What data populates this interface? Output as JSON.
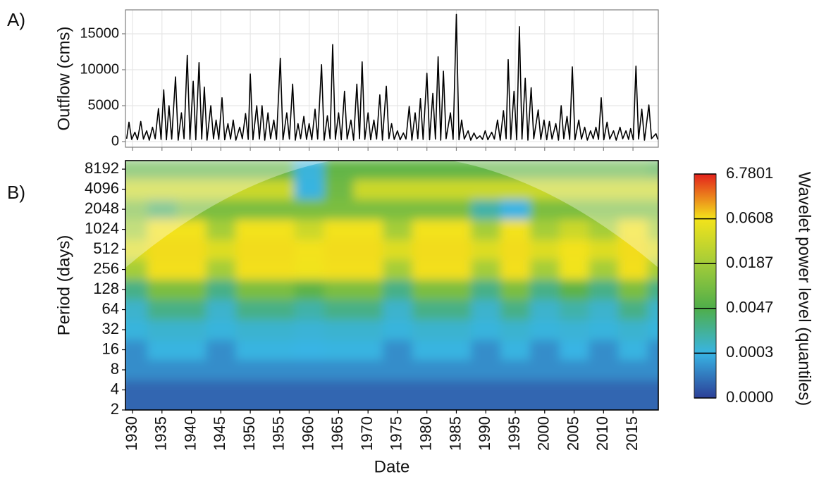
{
  "chart_data": [
    {
      "type": "line",
      "panel_label": "A)",
      "ylabel": "Outflow (cms)",
      "color": "#000000",
      "grid": true,
      "show_xtick_labels": false,
      "xlim": [
        1928.8,
        2019.3
      ],
      "xticks": [
        1930,
        1935,
        1940,
        1945,
        1950,
        1955,
        1960,
        1965,
        1970,
        1975,
        1980,
        1985,
        1990,
        1995,
        2000,
        2005,
        2010,
        2015
      ],
      "ylim": [
        -785,
        18330
      ],
      "yticks": [
        0,
        5000,
        10000,
        15000
      ],
      "x": [
        1929.0,
        1929.4,
        1929.85,
        1930.4,
        1930.85,
        1931.4,
        1931.85,
        1932.4,
        1932.85,
        1933.4,
        1933.85,
        1934.4,
        1934.85,
        1935.3,
        1935.75,
        1936.2,
        1936.65,
        1937.3,
        1937.75,
        1938.3,
        1938.75,
        1939.3,
        1939.75,
        1940.3,
        1940.75,
        1941.3,
        1941.75,
        1942.2,
        1942.65,
        1943.3,
        1943.75,
        1944.2,
        1944.65,
        1945.2,
        1945.65,
        1946.2,
        1946.65,
        1947.1,
        1947.55,
        1948.2,
        1948.65,
        1949.2,
        1949.65,
        1950.0,
        1950.45,
        1951.1,
        1951.55,
        1952.0,
        1952.45,
        1953.0,
        1953.45,
        1954.0,
        1954.45,
        1955.1,
        1955.55,
        1956.2,
        1956.65,
        1957.2,
        1957.65,
        1958.1,
        1958.55,
        1959.1,
        1959.55,
        1960.0,
        1960.45,
        1961.0,
        1961.45,
        1962.1,
        1962.55,
        1963.1,
        1963.55,
        1964.0,
        1964.45,
        1965.0,
        1965.45,
        1966.0,
        1966.45,
        1967.1,
        1967.55,
        1968.1,
        1968.55,
        1969.0,
        1969.45,
        1970.0,
        1970.45,
        1971.0,
        1971.45,
        1972.0,
        1972.45,
        1973.1,
        1973.55,
        1974.0,
        1974.45,
        1975.0,
        1975.45,
        1976.0,
        1976.45,
        1977.0,
        1977.45,
        1978.0,
        1978.45,
        1978.9,
        1979.35,
        1980.0,
        1980.45,
        1981.0,
        1981.45,
        1981.9,
        1982.35,
        1982.8,
        1983.25,
        1984.0,
        1984.45,
        1985.0,
        1985.45,
        1985.9,
        1986.35,
        1987.0,
        1987.45,
        1988.0,
        1988.45,
        1989.0,
        1989.45,
        1989.9,
        1990.35,
        1991.0,
        1991.45,
        1992.0,
        1992.45,
        1993.0,
        1993.45,
        1993.8,
        1994.25,
        1994.8,
        1995.25,
        1995.7,
        1996.15,
        1996.7,
        1997.15,
        1997.7,
        1998.15,
        1998.9,
        1999.35,
        1999.9,
        2000.35,
        2000.8,
        2001.25,
        2001.9,
        2002.35,
        2002.8,
        2003.25,
        2003.8,
        2004.25,
        2004.7,
        2005.15,
        2005.8,
        2006.25,
        2006.8,
        2007.25,
        2007.8,
        2008.25,
        2008.7,
        2009.15,
        2009.6,
        2010.05,
        2010.6,
        2011.05,
        2011.7,
        2012.15,
        2012.8,
        2013.25,
        2013.8,
        2014.25,
        2014.6,
        2015.05,
        2015.5,
        2015.95,
        2016.5,
        2016.95,
        2017.7,
        2018.15,
        2018.9,
        2019.2
      ],
      "values": [
        400,
        2700,
        300,
        1300,
        250,
        2800,
        350,
        1500,
        200,
        2000,
        400,
        4600,
        300,
        7200,
        250,
        5000,
        350,
        9000,
        200,
        4000,
        400,
        12000,
        300,
        8400,
        250,
        11000,
        350,
        7600,
        200,
        5000,
        400,
        3000,
        300,
        6100,
        250,
        2500,
        350,
        3000,
        200,
        2000,
        400,
        3900,
        300,
        9400,
        250,
        5000,
        350,
        5000,
        200,
        4000,
        400,
        3000,
        300,
        11600,
        250,
        4000,
        350,
        8000,
        200,
        2500,
        400,
        3500,
        300,
        2500,
        250,
        4500,
        350,
        10700,
        200,
        3600,
        400,
        13500,
        300,
        4000,
        250,
        7000,
        350,
        3000,
        200,
        8000,
        400,
        11100,
        300,
        4000,
        250,
        3000,
        350,
        6500,
        200,
        7700,
        400,
        2500,
        300,
        1500,
        250,
        1200,
        350,
        4900,
        200,
        4000,
        400,
        6000,
        300,
        9500,
        250,
        6700,
        350,
        11800,
        200,
        9800,
        400,
        4000,
        300,
        17700,
        250,
        3000,
        350,
        1500,
        200,
        1200,
        400,
        800,
        300,
        1500,
        250,
        1300,
        350,
        3000,
        200,
        4300,
        400,
        11400,
        300,
        7000,
        250,
        16000,
        350,
        8800,
        200,
        7500,
        400,
        4400,
        300,
        3000,
        250,
        2800,
        350,
        2500,
        200,
        5000,
        400,
        3500,
        300,
        10400,
        250,
        3000,
        350,
        2000,
        200,
        1500,
        400,
        2000,
        300,
        6100,
        250,
        2700,
        350,
        1500,
        200,
        2000,
        400,
        1500,
        300,
        1800,
        250,
        10500,
        350,
        4500,
        200,
        5100,
        400,
        1100,
        300
      ]
    },
    {
      "type": "heatmap",
      "panel_label": "B)",
      "xlabel": "Date",
      "ylabel": "Period (days)",
      "show_xtick_labels": true,
      "y_log_base": 2,
      "xlim": [
        1928.8,
        2019.3
      ],
      "xticks": [
        1930,
        1935,
        1940,
        1945,
        1950,
        1955,
        1960,
        1965,
        1970,
        1975,
        1980,
        1985,
        1990,
        1995,
        2000,
        2005,
        2010,
        2015
      ],
      "ylim": [
        2,
        11000
      ],
      "yticks": [
        2,
        4,
        8,
        16,
        32,
        64,
        128,
        256,
        512,
        1024,
        2048,
        4096,
        8192
      ],
      "x_bins": [
        1927.5,
        1932.5,
        1937.5,
        1942.5,
        1947.5,
        1952.5,
        1957.5,
        1962.5,
        1967.5,
        1972.5,
        1977.5,
        1982.5,
        1987.5,
        1992.5,
        1997.5,
        2002.5,
        2007.5,
        2012.5,
        2017.5,
        2022.5
      ],
      "periods": [
        2,
        4,
        8,
        16,
        32,
        64,
        128,
        256,
        512,
        1024,
        2048,
        4096,
        8192
      ],
      "values": [
        [
          0.0001,
          0.0001,
          0.0001,
          0.0001,
          0.0001,
          0.0001,
          0.0001,
          0.0001,
          0.0001,
          0.0001,
          0.0001,
          0.0001,
          0.0001,
          0.0001,
          0.0001,
          0.0001,
          0.0001,
          0.0001,
          0.0001
        ],
        [
          0.0001,
          0.0001,
          0.0001,
          0.0001,
          0.0001,
          0.0001,
          0.0001,
          0.0001,
          0.0001,
          0.0001,
          0.0001,
          0.0001,
          0.0001,
          0.0001,
          0.0001,
          0.0001,
          0.0001,
          0.0001,
          0.0001
        ],
        [
          0.0002,
          0.0002,
          0.0002,
          0.0002,
          0.0002,
          0.0002,
          0.0002,
          0.0002,
          0.0002,
          0.0002,
          0.0002,
          0.0002,
          0.0002,
          0.0002,
          0.0002,
          0.0002,
          0.0002,
          0.0002,
          0.0002
        ],
        [
          0.0002,
          0.0004,
          0.0004,
          0.0002,
          0.0004,
          0.0004,
          0.0003,
          0.0004,
          0.0004,
          0.0002,
          0.0004,
          0.0004,
          0.0002,
          0.0004,
          0.0002,
          0.0003,
          0.0002,
          0.0004,
          0.0002
        ],
        [
          0.0005,
          0.0009,
          0.0009,
          0.0005,
          0.0009,
          0.0009,
          0.0007,
          0.0009,
          0.0009,
          0.0005,
          0.0009,
          0.0009,
          0.0005,
          0.0009,
          0.0005,
          0.0007,
          0.0005,
          0.0009,
          0.0005
        ],
        [
          0.001,
          0.003,
          0.003,
          0.001,
          0.003,
          0.003,
          0.002,
          0.003,
          0.003,
          0.001,
          0.003,
          0.003,
          0.001,
          0.003,
          0.001,
          0.002,
          0.001,
          0.003,
          0.001
        ],
        [
          0.003,
          0.012,
          0.012,
          0.003,
          0.012,
          0.012,
          0.007,
          0.012,
          0.012,
          0.003,
          0.012,
          0.012,
          0.003,
          0.012,
          0.003,
          0.007,
          0.003,
          0.012,
          0.003
        ],
        [
          0.02,
          0.2,
          0.2,
          0.02,
          0.2,
          0.2,
          0.06,
          0.2,
          0.2,
          0.02,
          0.2,
          0.2,
          0.02,
          0.2,
          0.02,
          0.06,
          0.02,
          0.2,
          0.02
        ],
        [
          0.05,
          0.3,
          0.3,
          0.05,
          0.3,
          0.3,
          0.1,
          0.3,
          0.3,
          0.05,
          0.3,
          0.3,
          0.05,
          0.3,
          0.05,
          0.1,
          0.05,
          0.3,
          0.05
        ],
        [
          0.02,
          0.08,
          0.08,
          0.02,
          0.08,
          0.08,
          0.04,
          0.08,
          0.08,
          0.02,
          0.08,
          0.08,
          0.02,
          0.08,
          0.02,
          0.04,
          0.02,
          0.08,
          0.02
        ],
        [
          0.012,
          0.004,
          0.012,
          0.012,
          0.012,
          0.012,
          0.012,
          0.012,
          0.012,
          0.012,
          0.012,
          0.012,
          0.002,
          0.0003,
          0.012,
          0.012,
          0.012,
          0.012,
          0.012
        ],
        [
          0.04,
          0.04,
          0.04,
          0.04,
          0.04,
          0.04,
          0.0004,
          0.01,
          0.04,
          0.04,
          0.04,
          0.04,
          0.04,
          0.04,
          0.04,
          0.04,
          0.04,
          0.04,
          0.04
        ],
        [
          0.008,
          0.008,
          0.008,
          0.008,
          0.008,
          0.008,
          0.0006,
          0.008,
          0.008,
          0.008,
          0.008,
          0.008,
          0.008,
          0.008,
          0.008,
          0.008,
          0.008,
          0.008,
          0.005
        ]
      ],
      "colorbar": {
        "title": "Wavelet power level (quantiles)",
        "ticks": [
          {
            "value": 0,
            "label": "0.0000"
          },
          0.0003,
          0.0047,
          0.0187,
          0.0608,
          6.7801
        ],
        "colors": [
          "#2c3f97",
          "#38b4e4",
          "#4fae4a",
          "#a3cc39",
          "#f3e31b",
          "#e3211c"
        ]
      }
    }
  ]
}
